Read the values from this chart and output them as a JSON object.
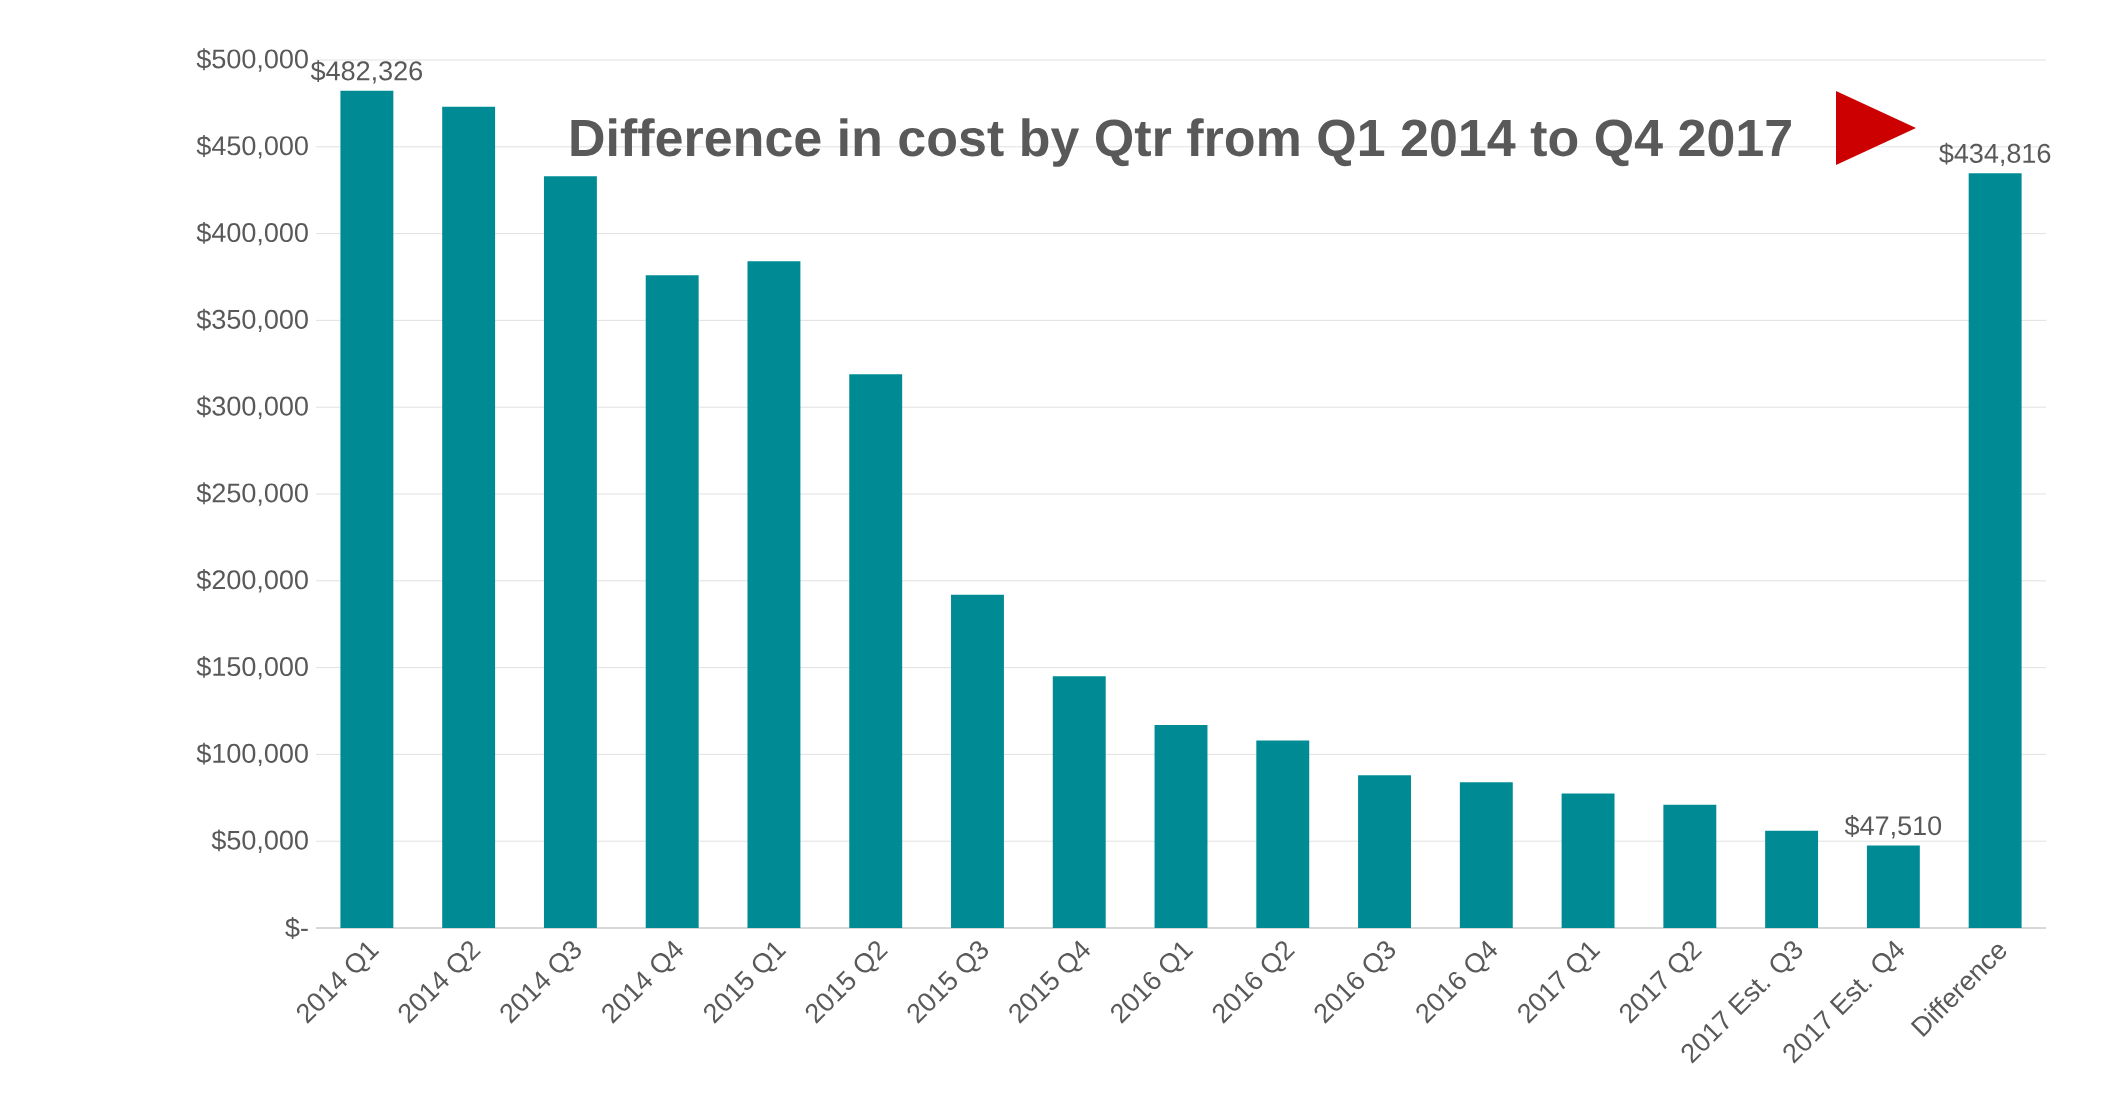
{
  "chart_data": {
    "type": "bar",
    "categories": [
      "2014 Q1",
      "2014 Q2",
      "2014 Q3",
      "2014 Q4",
      "2015 Q1",
      "2015 Q2",
      "2015 Q3",
      "2015 Q4",
      "2016 Q1",
      "2016 Q2",
      "2016 Q3",
      "2016 Q4",
      "2017 Q1",
      "2017 Q2",
      "2017 Est. Q3",
      "2017 Est. Q4",
      "Difference"
    ],
    "values": [
      482326,
      473000,
      433000,
      376000,
      384000,
      319000,
      192000,
      145000,
      117000,
      108000,
      88000,
      84000,
      77500,
      71000,
      56000,
      47510,
      434816
    ],
    "value_labels": [
      "$482,326",
      null,
      null,
      null,
      null,
      null,
      null,
      null,
      null,
      null,
      null,
      null,
      null,
      null,
      null,
      "$47,510",
      "$434,816"
    ],
    "color": "#008b94",
    "ylim": [
      0,
      500000
    ],
    "yticks": [
      {
        "value": 0,
        "label": "$-"
      },
      {
        "value": 50000,
        "label": "$50,000"
      },
      {
        "value": 100000,
        "label": "$100,000"
      },
      {
        "value": 150000,
        "label": "$150,000"
      },
      {
        "value": 200000,
        "label": "$200,000"
      },
      {
        "value": 250000,
        "label": "$250,000"
      },
      {
        "value": 300000,
        "label": "$300,000"
      },
      {
        "value": 350000,
        "label": "$350,000"
      },
      {
        "value": 400000,
        "label": "$400,000"
      },
      {
        "value": 450000,
        "label": "$450,000"
      },
      {
        "value": 500000,
        "label": "$500,000"
      }
    ],
    "grid": "y",
    "annotations": [
      "Difference in cost by Qtr from Q1 2014 to Q4 2017"
    ]
  }
}
